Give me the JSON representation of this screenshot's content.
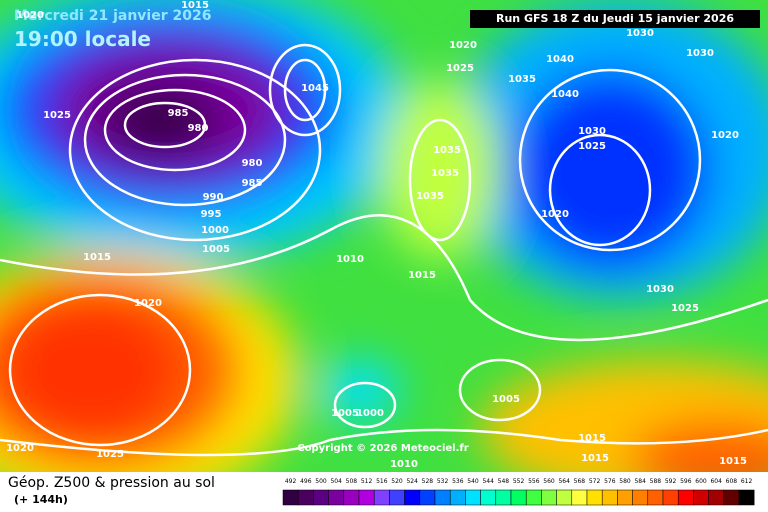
{
  "header": {
    "date": "Mercredi 21 janvier 2026",
    "time": "19:00 locale",
    "run": "Run GFS 18 Z du Jeudi 15 janvier 2026"
  },
  "footer": {
    "title": "Géop. Z500 & pression au sol",
    "lead": "(+ 144h)",
    "copyright": "Copyright © 2026 Meteociel.fr"
  },
  "isobar_labels": [
    "1015",
    "1020",
    "1025",
    "985",
    "980",
    "980",
    "985",
    "990",
    "995",
    "1000",
    "1005",
    "1015",
    "1020",
    "1020",
    "1025",
    "1045",
    "1010",
    "1015",
    "1020",
    "1025",
    "1035",
    "1040",
    "1040",
    "1030",
    "1030",
    "1030",
    "1025",
    "1020",
    "1035",
    "1035",
    "1035",
    "1030",
    "1025",
    "1020",
    "1005",
    "1000",
    "1005",
    "1015",
    "1015",
    "1010",
    "1015"
  ],
  "colorbar": {
    "levels": [
      492,
      496,
      500,
      504,
      508,
      512,
      516,
      520,
      524,
      528,
      532,
      536,
      540,
      544,
      548,
      552,
      556,
      560,
      564,
      568,
      572,
      576,
      580,
      584,
      588,
      592,
      596,
      600,
      604,
      608,
      612
    ],
    "colors": [
      "#300040",
      "#4b0060",
      "#5a0080",
      "#7a00a0",
      "#9a00c0",
      "#b000e0",
      "#8040ff",
      "#4040ff",
      "#0000ff",
      "#0040ff",
      "#0080ff",
      "#00b0ff",
      "#00e0ff",
      "#00ffd0",
      "#00ffa0",
      "#00ff60",
      "#40ff40",
      "#80ff40",
      "#c0ff40",
      "#ffff40",
      "#ffe000",
      "#ffc000",
      "#ffa000",
      "#ff8000",
      "#ff6000",
      "#ff4000",
      "#ff0000",
      "#d00000",
      "#a00000",
      "#600000",
      "#000000"
    ]
  }
}
